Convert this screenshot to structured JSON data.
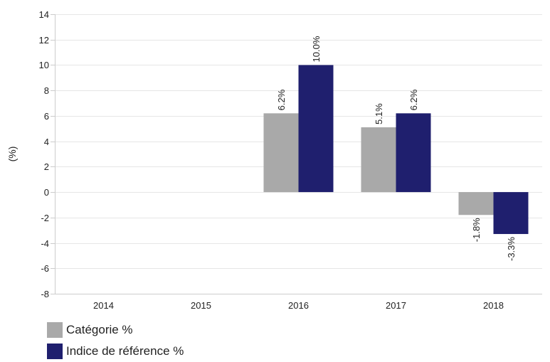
{
  "chart_data": {
    "type": "bar",
    "categories": [
      "2014",
      "2015",
      "2016",
      "2017",
      "2018"
    ],
    "series": [
      {
        "name": "Catégorie %",
        "color": "#a9a9a9",
        "values": [
          null,
          null,
          6.2,
          5.1,
          -1.8
        ],
        "labels": [
          null,
          null,
          "6.2%",
          "5.1%",
          "-1.8%"
        ]
      },
      {
        "name": "Indice de référence %",
        "color": "#1f1f6e",
        "values": [
          null,
          null,
          10.0,
          6.2,
          -3.3
        ],
        "labels": [
          null,
          null,
          "10.0%",
          "6.2%",
          "-3.3%"
        ]
      }
    ],
    "ylabel": "(%)",
    "ylim": [
      -8,
      14
    ],
    "yticks": [
      14,
      12,
      10,
      8,
      6,
      4,
      2,
      0,
      -2,
      -4,
      -6,
      -8
    ],
    "grid": true,
    "legend_position": "bottom-left"
  }
}
